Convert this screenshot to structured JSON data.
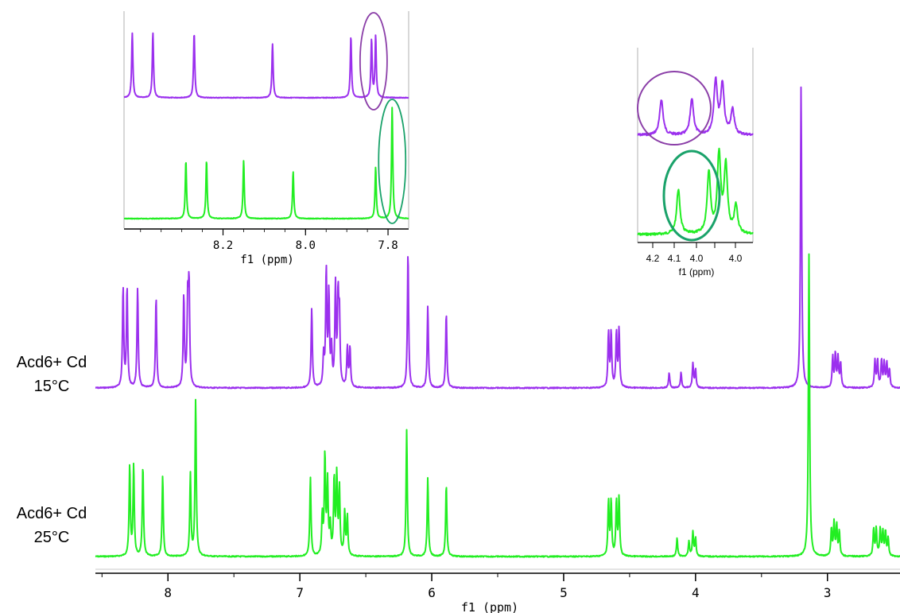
{
  "chart_data": [
    {
      "type": "line",
      "title": "",
      "xlabel": "f1 (ppm)",
      "ylabel": "",
      "x_axis": {
        "range": [
          8.55,
          2.45
        ],
        "reversed": true,
        "ticks": [
          8,
          7,
          6,
          5,
          4,
          3
        ]
      },
      "series": [
        {
          "name": "Acd6+ Cd 15°C",
          "label_lines": [
            "Acd6+ Cd",
            "15°C"
          ],
          "color": "#9b30ee",
          "peaks": [
            {
              "ppm": 8.34,
              "height": 0.33
            },
            {
              "ppm": 8.31,
              "height": 0.33
            },
            {
              "ppm": 8.23,
              "height": 0.33
            },
            {
              "ppm": 8.09,
              "height": 0.3
            },
            {
              "ppm": 7.88,
              "height": 0.3
            },
            {
              "ppm": 7.85,
              "height": 0.28
            },
            {
              "ppm": 7.84,
              "height": 0.32
            },
            {
              "ppm": 6.91,
              "height": 0.26
            },
            {
              "ppm": 6.82,
              "height": 0.1
            },
            {
              "ppm": 6.8,
              "height": 0.38
            },
            {
              "ppm": 6.78,
              "height": 0.3
            },
            {
              "ppm": 6.76,
              "height": 0.12
            },
            {
              "ppm": 6.73,
              "height": 0.33
            },
            {
              "ppm": 6.71,
              "height": 0.28
            },
            {
              "ppm": 6.7,
              "height": 0.22
            },
            {
              "ppm": 6.64,
              "height": 0.13
            },
            {
              "ppm": 6.62,
              "height": 0.13
            },
            {
              "ppm": 6.18,
              "height": 0.45
            },
            {
              "ppm": 6.03,
              "height": 0.27
            },
            {
              "ppm": 5.89,
              "height": 0.25
            },
            {
              "ppm": 4.66,
              "height": 0.18
            },
            {
              "ppm": 4.64,
              "height": 0.18
            },
            {
              "ppm": 4.6,
              "height": 0.18
            },
            {
              "ppm": 4.58,
              "height": 0.19
            },
            {
              "ppm": 4.2,
              "height": 0.05
            },
            {
              "ppm": 4.11,
              "height": 0.05
            },
            {
              "ppm": 4.02,
              "height": 0.08
            },
            {
              "ppm": 4.0,
              "height": 0.06
            },
            {
              "ppm": 3.2,
              "height": 1.0
            },
            {
              "ppm": 2.96,
              "height": 0.1
            },
            {
              "ppm": 2.94,
              "height": 0.11
            },
            {
              "ppm": 2.92,
              "height": 0.1
            },
            {
              "ppm": 2.9,
              "height": 0.08
            },
            {
              "ppm": 2.64,
              "height": 0.09
            },
            {
              "ppm": 2.62,
              "height": 0.09
            },
            {
              "ppm": 2.59,
              "height": 0.09
            },
            {
              "ppm": 2.57,
              "height": 0.08
            },
            {
              "ppm": 2.55,
              "height": 0.08
            },
            {
              "ppm": 2.53,
              "height": 0.06
            }
          ]
        },
        {
          "name": "Acd6+ Cd 25°C",
          "label_lines": [
            "Acd6+ Cd",
            "25°C"
          ],
          "color": "#22ee22",
          "peaks": [
            {
              "ppm": 8.29,
              "height": 0.3
            },
            {
              "ppm": 8.26,
              "height": 0.3
            },
            {
              "ppm": 8.19,
              "height": 0.3
            },
            {
              "ppm": 8.04,
              "height": 0.27
            },
            {
              "ppm": 7.83,
              "height": 0.27
            },
            {
              "ppm": 7.79,
              "height": 0.52
            },
            {
              "ppm": 6.92,
              "height": 0.26
            },
            {
              "ppm": 6.83,
              "height": 0.13
            },
            {
              "ppm": 6.81,
              "height": 0.33
            },
            {
              "ppm": 6.79,
              "height": 0.24
            },
            {
              "ppm": 6.77,
              "height": 0.1
            },
            {
              "ppm": 6.74,
              "height": 0.25
            },
            {
              "ppm": 6.72,
              "height": 0.26
            },
            {
              "ppm": 6.7,
              "height": 0.22
            },
            {
              "ppm": 6.66,
              "height": 0.14
            },
            {
              "ppm": 6.64,
              "height": 0.13
            },
            {
              "ppm": 6.19,
              "height": 0.42
            },
            {
              "ppm": 6.03,
              "height": 0.26
            },
            {
              "ppm": 5.89,
              "height": 0.24
            },
            {
              "ppm": 4.66,
              "height": 0.18
            },
            {
              "ppm": 4.64,
              "height": 0.18
            },
            {
              "ppm": 4.6,
              "height": 0.18
            },
            {
              "ppm": 4.58,
              "height": 0.19
            },
            {
              "ppm": 4.14,
              "height": 0.06
            },
            {
              "ppm": 4.05,
              "height": 0.05
            },
            {
              "ppm": 4.02,
              "height": 0.08
            },
            {
              "ppm": 4.0,
              "height": 0.06
            },
            {
              "ppm": 3.14,
              "height": 1.0
            },
            {
              "ppm": 2.97,
              "height": 0.09
            },
            {
              "ppm": 2.95,
              "height": 0.11
            },
            {
              "ppm": 2.93,
              "height": 0.1
            },
            {
              "ppm": 2.91,
              "height": 0.08
            },
            {
              "ppm": 2.65,
              "height": 0.09
            },
            {
              "ppm": 2.63,
              "height": 0.09
            },
            {
              "ppm": 2.6,
              "height": 0.09
            },
            {
              "ppm": 2.58,
              "height": 0.08
            },
            {
              "ppm": 2.56,
              "height": 0.08
            },
            {
              "ppm": 2.54,
              "height": 0.06
            }
          ]
        }
      ]
    },
    {
      "type": "line",
      "title": "",
      "xlabel": "f1 (ppm)",
      "x_axis": {
        "range": [
          8.44,
          7.75
        ],
        "reversed": true,
        "ticks": [
          "8.2",
          "8.0",
          "7.8"
        ]
      },
      "series": [
        {
          "name": "15°C",
          "color": "#9b30ee",
          "peaks": [
            {
              "ppm": 8.42,
              "height": 0.68
            },
            {
              "ppm": 8.37,
              "height": 0.68
            },
            {
              "ppm": 8.27,
              "height": 0.68
            },
            {
              "ppm": 8.08,
              "height": 0.56
            },
            {
              "ppm": 7.89,
              "height": 0.64
            },
            {
              "ppm": 7.84,
              "height": 0.6
            },
            {
              "ppm": 7.83,
              "height": 0.64
            }
          ],
          "highlight": {
            "center_ppm": 7.835,
            "color": "#8b3fa8"
          }
        },
        {
          "name": "25°C",
          "color": "#22ee22",
          "peaks": [
            {
              "ppm": 8.29,
              "height": 0.52
            },
            {
              "ppm": 8.24,
              "height": 0.52
            },
            {
              "ppm": 8.15,
              "height": 0.52
            },
            {
              "ppm": 8.03,
              "height": 0.42
            },
            {
              "ppm": 7.83,
              "height": 0.46
            },
            {
              "ppm": 7.79,
              "height": 1.0
            }
          ],
          "highlight": {
            "center_ppm": 7.79,
            "color": "#1aa26a"
          }
        }
      ]
    },
    {
      "type": "line",
      "title": "",
      "xlabel": "f1 (ppm)",
      "x_axis": {
        "range": [
          4.26,
          3.92
        ],
        "reversed": true,
        "ticks": [
          "4.2",
          "4.1",
          "4.0",
          "4.0"
        ]
      },
      "series": [
        {
          "name": "15°C",
          "color": "#9b30ee",
          "peaks": [
            {
              "ppm": 4.19,
              "height": 0.32
            },
            {
              "ppm": 4.1,
              "height": 0.32
            },
            {
              "ppm": 4.03,
              "height": 0.48
            },
            {
              "ppm": 4.01,
              "height": 0.45
            },
            {
              "ppm": 3.98,
              "height": 0.22
            }
          ],
          "highlight": {
            "center_ppm": 4.145,
            "color": "#8b3fa8"
          }
        },
        {
          "name": "25°C",
          "color": "#22ee22",
          "peaks": [
            {
              "ppm": 4.14,
              "height": 0.4
            },
            {
              "ppm": 4.05,
              "height": 0.55
            },
            {
              "ppm": 4.02,
              "height": 0.7
            },
            {
              "ppm": 4.0,
              "height": 0.6
            },
            {
              "ppm": 3.97,
              "height": 0.25
            }
          ],
          "highlight": {
            "center_ppm": 4.09,
            "color": "#1aa26a"
          }
        }
      ]
    }
  ]
}
